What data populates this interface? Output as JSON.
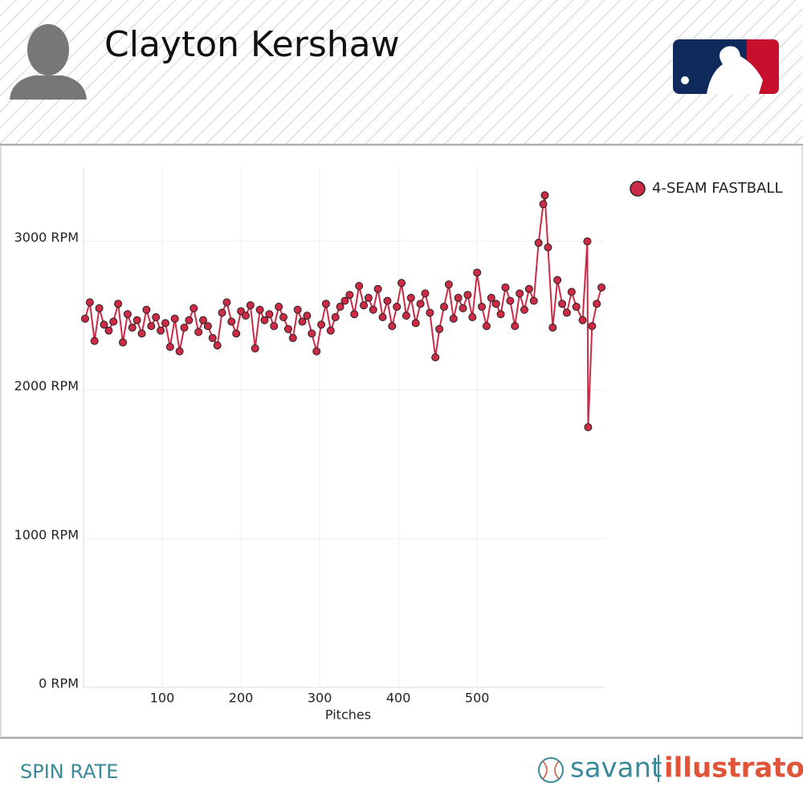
{
  "header": {
    "title": "Clayton Kershaw"
  },
  "footer": {
    "label": "SPIN RATE",
    "brand_left": "savant",
    "brand_right": "illustrator"
  },
  "chart_data": {
    "type": "line",
    "x_label": "Pitches",
    "xlim": [
      0,
      662
    ],
    "ylim": [
      0,
      3500
    ],
    "xticks": [
      100,
      200,
      300,
      400,
      500
    ],
    "yticks": [
      {
        "value": 0,
        "label": "0 RPM"
      },
      {
        "value": 1000,
        "label": "1000 RPM"
      },
      {
        "value": 2000,
        "label": "2000 RPM"
      },
      {
        "value": 3000,
        "label": "3000 RPM"
      }
    ],
    "grid": true,
    "legend": "top-right",
    "x": [
      2,
      8,
      14,
      20,
      26,
      32,
      38,
      44,
      50,
      56,
      62,
      68,
      74,
      80,
      86,
      92,
      98,
      104,
      110,
      116,
      122,
      128,
      134,
      140,
      146,
      152,
      158,
      164,
      170,
      176,
      182,
      188,
      194,
      200,
      206,
      212,
      218,
      224,
      230,
      236,
      242,
      248,
      254,
      260,
      266,
      272,
      278,
      284,
      290,
      296,
      302,
      308,
      314,
      320,
      326,
      332,
      338,
      344,
      350,
      356,
      362,
      368,
      374,
      380,
      386,
      392,
      398,
      404,
      410,
      416,
      422,
      428,
      434,
      440,
      447,
      452,
      458,
      464,
      470,
      476,
      482,
      488,
      494,
      500,
      506,
      512,
      518,
      524,
      530,
      536,
      542,
      548,
      554,
      560,
      566,
      572,
      578,
      584,
      586,
      590,
      596,
      602,
      608,
      614,
      620,
      626,
      634,
      640,
      641,
      646,
      652,
      658
    ],
    "series": [
      {
        "name": "4-SEAM FASTBALL",
        "color": "#cc2a45",
        "values": [
          2480,
          2590,
          2330,
          2550,
          2440,
          2400,
          2460,
          2580,
          2320,
          2510,
          2420,
          2470,
          2380,
          2540,
          2430,
          2490,
          2400,
          2450,
          2290,
          2480,
          2260,
          2420,
          2470,
          2550,
          2390,
          2470,
          2430,
          2350,
          2300,
          2520,
          2590,
          2460,
          2380,
          2530,
          2500,
          2570,
          2280,
          2540,
          2470,
          2510,
          2430,
          2560,
          2490,
          2410,
          2350,
          2540,
          2460,
          2500,
          2380,
          2260,
          2440,
          2580,
          2400,
          2490,
          2560,
          2600,
          2640,
          2510,
          2700,
          2570,
          2620,
          2540,
          2680,
          2490,
          2600,
          2430,
          2560,
          2720,
          2500,
          2620,
          2450,
          2580,
          2650,
          2520,
          2220,
          2410,
          2560,
          2710,
          2480,
          2620,
          2550,
          2640,
          2490,
          2790,
          2560,
          2430,
          2620,
          2580,
          2510,
          2690,
          2600,
          2430,
          2650,
          2540,
          2680,
          2600,
          2990,
          3250,
          3310,
          2960,
          2420,
          2740,
          2580,
          2520,
          2660,
          2560,
          2470,
          3000,
          1750,
          2430,
          2580,
          2690
        ]
      }
    ]
  }
}
